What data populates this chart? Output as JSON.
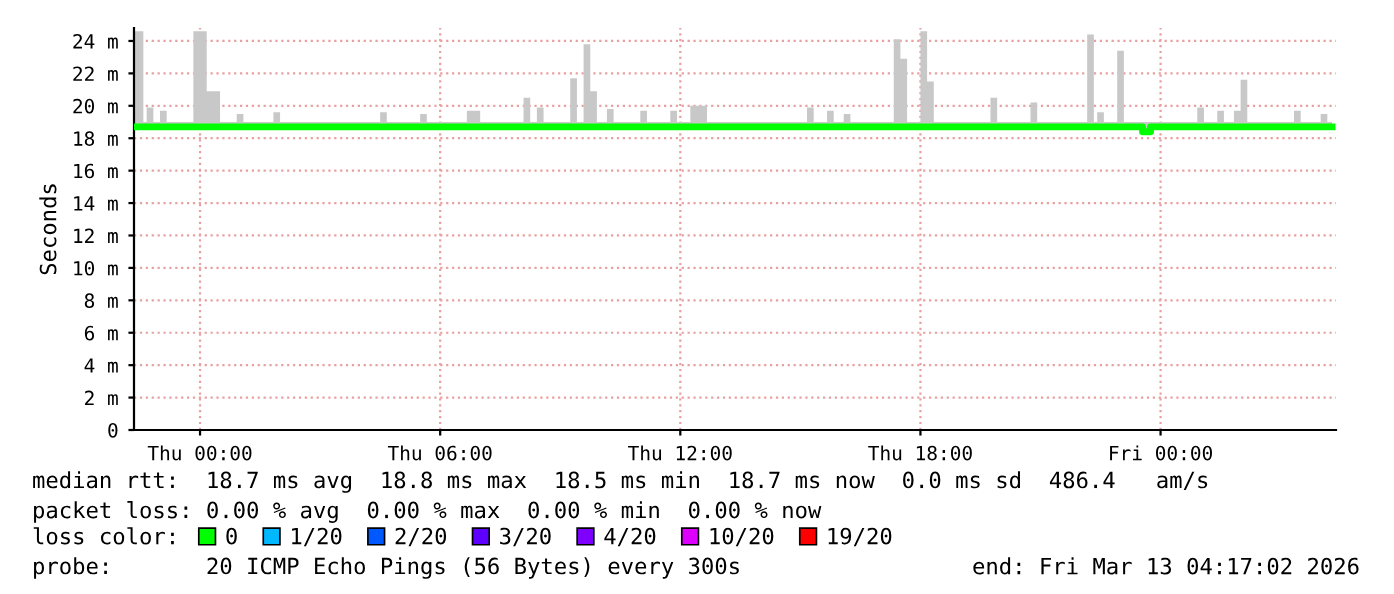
{
  "chart_data": {
    "type": "line",
    "ylabel": "Seconds",
    "x": [
      "2026-03-11T22:21",
      "2026-03-11T22:30",
      "2026-03-11T22:35",
      "2026-03-11T22:40",
      "2026-03-11T22:50",
      "2026-03-11T23:00",
      "2026-03-11T23:10",
      "2026-03-11T23:50",
      "2026-03-12T00:00",
      "2026-03-12T00:10",
      "2026-03-12T00:20",
      "2026-03-12T00:30",
      "2026-03-12T00:55",
      "2026-03-12T01:05",
      "2026-03-12T01:50",
      "2026-03-12T02:00",
      "2026-03-12T04:30",
      "2026-03-12T04:40",
      "2026-03-12T05:30",
      "2026-03-12T05:40",
      "2026-03-12T06:40",
      "2026-03-12T06:50",
      "2026-03-12T07:00",
      "2026-03-12T08:05",
      "2026-03-12T08:15",
      "2026-03-12T08:25",
      "2026-03-12T08:35",
      "2026-03-12T09:15",
      "2026-03-12T09:25",
      "2026-03-12T09:35",
      "2026-03-12T09:45",
      "2026-03-12T09:55",
      "2026-03-12T10:10",
      "2026-03-12T10:20",
      "2026-03-12T11:00",
      "2026-03-12T11:10",
      "2026-03-12T11:45",
      "2026-03-12T11:55",
      "2026-03-12T12:15",
      "2026-03-12T12:30",
      "2026-03-12T12:40",
      "2026-03-12T15:10",
      "2026-03-12T15:20",
      "2026-03-12T15:40",
      "2026-03-12T15:50",
      "2026-03-12T16:05",
      "2026-03-12T16:15",
      "2026-03-12T17:20",
      "2026-03-12T17:30",
      "2026-03-12T17:40",
      "2026-03-12T18:00",
      "2026-03-12T18:10",
      "2026-03-12T18:20",
      "2026-03-12T19:45",
      "2026-03-12T19:55",
      "2026-03-12T20:45",
      "2026-03-12T20:55",
      "2026-03-12T22:10",
      "2026-03-12T22:20",
      "2026-03-12T22:25",
      "2026-03-12T22:35",
      "2026-03-12T22:55",
      "2026-03-12T23:05",
      "2026-03-12T23:33",
      "2026-03-12T23:45",
      "2026-03-13T00:55",
      "2026-03-13T01:05",
      "2026-03-13T01:25",
      "2026-03-13T01:35",
      "2026-03-13T01:50",
      "2026-03-13T02:00",
      "2026-03-13T02:10",
      "2026-03-13T03:20",
      "2026-03-13T03:30",
      "2026-03-13T04:00",
      "2026-03-13T04:10",
      "2026-03-13T04:17"
    ],
    "series": [
      {
        "name": "0",
        "color": "#00ff00",
        "values": [
          18.7,
          18.7,
          18.7,
          18.7,
          18.7,
          18.7,
          18.7,
          18.7,
          18.7,
          18.7,
          18.7,
          18.7,
          18.7,
          18.7,
          18.7,
          18.7,
          18.7,
          18.7,
          18.7,
          18.7,
          18.7,
          18.7,
          18.7,
          18.7,
          18.7,
          18.7,
          18.7,
          18.7,
          18.7,
          18.7,
          18.7,
          18.7,
          18.7,
          18.7,
          18.7,
          18.7,
          18.7,
          18.7,
          18.7,
          18.7,
          18.7,
          18.7,
          18.7,
          18.7,
          18.7,
          18.7,
          18.7,
          18.7,
          18.7,
          18.7,
          18.7,
          18.7,
          18.7,
          18.7,
          18.7,
          18.7,
          18.7,
          18.7,
          18.7,
          18.7,
          18.7,
          18.7,
          18.7,
          18.4,
          18.7,
          18.7,
          18.7,
          18.7,
          18.7,
          18.7,
          18.7,
          18.7,
          18.7,
          18.7,
          18.7,
          18.7,
          18.7
        ],
        "lower": [
          18.5,
          18.5,
          18.5,
          18.5,
          18.5,
          18.5,
          18.5,
          18.5,
          18.5,
          18.5,
          18.5,
          18.5,
          18.5,
          18.5,
          18.5,
          18.5,
          18.5,
          18.5,
          18.5,
          18.5,
          18.5,
          18.5,
          18.5,
          18.5,
          18.5,
          18.5,
          18.5,
          18.5,
          18.5,
          18.5,
          18.5,
          18.5,
          18.5,
          18.5,
          18.5,
          18.5,
          18.5,
          18.5,
          18.5,
          18.5,
          18.5,
          18.5,
          18.5,
          18.5,
          18.5,
          18.5,
          18.5,
          18.5,
          18.5,
          18.5,
          18.5,
          18.5,
          18.5,
          18.5,
          18.5,
          18.5,
          18.5,
          18.5,
          18.5,
          18.5,
          18.5,
          18.5,
          18.5,
          18.3,
          18.5,
          18.5,
          18.5,
          18.5,
          18.5,
          18.5,
          18.5,
          18.5,
          18.5,
          18.5,
          18.5,
          18.5,
          18.5
        ],
        "upper": [
          24.6,
          24.6,
          19.0,
          19.9,
          19.0,
          19.7,
          19.0,
          24.6,
          24.6,
          20.9,
          20.9,
          19.0,
          19.5,
          19.0,
          19.6,
          19.0,
          19.6,
          19.0,
          19.5,
          19.0,
          19.7,
          19.7,
          19.0,
          20.5,
          19.0,
          19.9,
          19.0,
          21.7,
          19.0,
          23.8,
          20.9,
          19.0,
          19.8,
          19.0,
          19.7,
          19.0,
          19.7,
          19.0,
          20.0,
          20.0,
          19.0,
          19.9,
          19.0,
          19.7,
          19.0,
          19.5,
          19.0,
          24.1,
          22.9,
          19.0,
          24.6,
          21.5,
          19.0,
          20.5,
          19.0,
          20.2,
          19.0,
          24.4,
          19.0,
          19.6,
          19.0,
          23.4,
          19.0,
          19.0,
          19.0,
          19.9,
          19.0,
          19.7,
          19.0,
          19.7,
          21.6,
          19.0,
          19.7,
          19.0,
          19.5,
          19.0,
          19.0
        ]
      },
      {
        "name": "1/20",
        "color": "#00b8ff",
        "values": [
          null,
          null,
          null,
          null,
          null,
          null,
          null,
          null,
          null,
          null,
          null,
          null,
          null,
          null,
          null,
          null,
          null,
          null,
          null,
          null,
          null,
          null,
          null,
          null,
          null,
          null,
          null,
          null,
          null,
          null,
          null,
          null,
          null,
          null,
          null,
          null,
          null,
          null,
          null,
          null,
          null,
          null,
          null,
          null,
          null,
          null,
          null,
          null,
          null,
          null,
          null,
          null,
          null,
          null,
          null,
          null,
          null,
          null,
          null,
          null,
          null,
          null,
          null,
          null,
          null,
          null,
          null,
          null,
          null,
          null,
          null,
          null,
          null,
          null,
          null,
          null,
          null
        ]
      },
      {
        "name": "2/20",
        "color": "#0059ff",
        "values": [
          null,
          null,
          null,
          null,
          null,
          null,
          null,
          null,
          null,
          null,
          null,
          null,
          null,
          null,
          null,
          null,
          null,
          null,
          null,
          null,
          null,
          null,
          null,
          null,
          null,
          null,
          null,
          null,
          null,
          null,
          null,
          null,
          null,
          null,
          null,
          null,
          null,
          null,
          null,
          null,
          null,
          null,
          null,
          null,
          null,
          null,
          null,
          null,
          null,
          null,
          null,
          null,
          null,
          null,
          null,
          null,
          null,
          null,
          null,
          null,
          null,
          null,
          null,
          null,
          null,
          null,
          null,
          null,
          null,
          null,
          null,
          null,
          null,
          null,
          null,
          null,
          null
        ]
      },
      {
        "name": "3/20",
        "color": "#5e00ff",
        "values": [
          null,
          null,
          null,
          null,
          null,
          null,
          null,
          null,
          null,
          null,
          null,
          null,
          null,
          null,
          null,
          null,
          null,
          null,
          null,
          null,
          null,
          null,
          null,
          null,
          null,
          null,
          null,
          null,
          null,
          null,
          null,
          null,
          null,
          null,
          null,
          null,
          null,
          null,
          null,
          null,
          null,
          null,
          null,
          null,
          null,
          null,
          null,
          null,
          null,
          null,
          null,
          null,
          null,
          null,
          null,
          null,
          null,
          null,
          null,
          null,
          null,
          null,
          null,
          null,
          null,
          null,
          null,
          null,
          null,
          null,
          null,
          null,
          null,
          null,
          null,
          null,
          null
        ]
      },
      {
        "name": "4/20",
        "color": "#7e00ff",
        "values": [
          null,
          null,
          null,
          null,
          null,
          null,
          null,
          null,
          null,
          null,
          null,
          null,
          null,
          null,
          null,
          null,
          null,
          null,
          null,
          null,
          null,
          null,
          null,
          null,
          null,
          null,
          null,
          null,
          null,
          null,
          null,
          null,
          null,
          null,
          null,
          null,
          null,
          null,
          null,
          null,
          null,
          null,
          null,
          null,
          null,
          null,
          null,
          null,
          null,
          null,
          null,
          null,
          null,
          null,
          null,
          null,
          null,
          null,
          null,
          null,
          null,
          null,
          null,
          null,
          null,
          null,
          null,
          null,
          null,
          null,
          null,
          null,
          null,
          null,
          null,
          null,
          null
        ]
      },
      {
        "name": "10/20",
        "color": "#dd00ff",
        "values": [
          null,
          null,
          null,
          null,
          null,
          null,
          null,
          null,
          null,
          null,
          null,
          null,
          null,
          null,
          null,
          null,
          null,
          null,
          null,
          null,
          null,
          null,
          null,
          null,
          null,
          null,
          null,
          null,
          null,
          null,
          null,
          null,
          null,
          null,
          null,
          null,
          null,
          null,
          null,
          null,
          null,
          null,
          null,
          null,
          null,
          null,
          null,
          null,
          null,
          null,
          null,
          null,
          null,
          null,
          null,
          null,
          null,
          null,
          null,
          null,
          null,
          null,
          null,
          null,
          null,
          null,
          null,
          null,
          null,
          null,
          null,
          null,
          null,
          null,
          null,
          null,
          null
        ]
      },
      {
        "name": "19/20",
        "color": "#ff0000",
        "values": [
          null,
          null,
          null,
          null,
          null,
          null,
          null,
          null,
          null,
          null,
          null,
          null,
          null,
          null,
          null,
          null,
          null,
          null,
          null,
          null,
          null,
          null,
          null,
          null,
          null,
          null,
          null,
          null,
          null,
          null,
          null,
          null,
          null,
          null,
          null,
          null,
          null,
          null,
          null,
          null,
          null,
          null,
          null,
          null,
          null,
          null,
          null,
          null,
          null,
          null,
          null,
          null,
          null,
          null,
          null,
          null,
          null,
          null,
          null,
          null,
          null,
          null,
          null,
          null,
          null,
          null,
          null,
          null,
          null,
          null,
          null,
          null,
          null,
          null,
          null,
          null,
          null
        ]
      }
    ],
    "legend": "bottom left",
    "legend_title": "loss color:",
    "xlim": [
      "2026-03-11T22:21",
      "2026-03-13T04:23"
    ],
    "xticks": [
      {
        "value": "2026-03-12T00:00",
        "label": "Thu 00:00"
      },
      {
        "value": "2026-03-12T06:00",
        "label": "Thu 06:00"
      },
      {
        "value": "2026-03-12T12:00",
        "label": "Thu 12:00"
      },
      {
        "value": "2026-03-12T18:00",
        "label": "Thu 18:00"
      },
      {
        "value": "2026-03-13T00:00",
        "label": "Fri 00:00"
      }
    ],
    "ylim": [
      0,
      24.8
    ],
    "yticks": [
      0,
      {
        "value": 2,
        "label": "2 m"
      },
      {
        "value": 4,
        "label": "4 m"
      },
      {
        "value": 6,
        "label": "6 m"
      },
      {
        "value": 8,
        "label": "8 m"
      },
      {
        "value": 10,
        "label": "10 m"
      },
      {
        "value": 12,
        "label": "12 m"
      },
      {
        "value": 14,
        "label": "14 m"
      },
      {
        "value": 16,
        "label": "16 m"
      },
      {
        "value": 18,
        "label": "18 m"
      },
      {
        "value": 20,
        "label": "20 m"
      },
      {
        "value": 22,
        "label": "22 m"
      },
      {
        "value": 24,
        "label": "24 m"
      }
    ],
    "grid": true,
    "annotations": [
      "median rtt:  18.7 ms avg  18.8 ms max  18.5 ms min  18.7 ms now  0.0 ms sd  486.4   am/s",
      "packet loss: 0.00 % avg  0.00 % max  0.00 % min  0.00 % now",
      "probe:       20 ICMP Echo Pings (56 Bytes) every 300s",
      "end: Fri Mar 13 04:17:02 2026"
    ]
  }
}
